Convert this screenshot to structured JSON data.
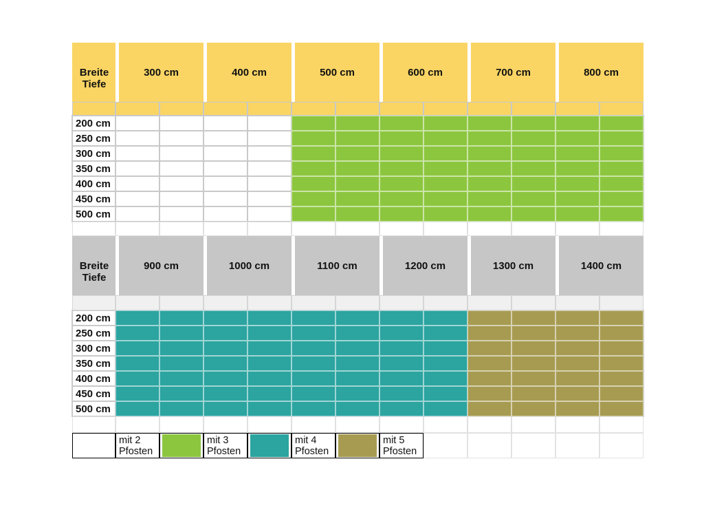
{
  "colors": {
    "yellow": "#FAD564",
    "gray": "#C6C6C6",
    "strip2": "#F0F0F0",
    "green": "#8CC63F",
    "teal": "#2CA4A0",
    "olive": "#A79B52",
    "grid": "#C9C9C9",
    "text": "#111111"
  },
  "tables": [
    {
      "corner_top": "Breite",
      "corner_bottom": "Tiefe",
      "columns": [
        "300 cm",
        "400 cm",
        "500 cm",
        "600 cm",
        "700 cm",
        "800 cm"
      ],
      "rows": [
        "200 cm",
        "250 cm",
        "300 cm",
        "350 cm",
        "400 cm",
        "450 cm",
        "500 cm"
      ],
      "zones": [
        "white",
        "white",
        "green",
        "green",
        "green",
        "green"
      ]
    },
    {
      "corner_top": "Breite",
      "corner_bottom": "Tiefe",
      "columns": [
        "900 cm",
        "1000 cm",
        "1100 cm",
        "1200 cm",
        "1300 cm",
        "1400 cm"
      ],
      "rows": [
        "200 cm",
        "250 cm",
        "300 cm",
        "350 cm",
        "400 cm",
        "450 cm",
        "500 cm"
      ],
      "zones": [
        "teal",
        "teal",
        "teal",
        "teal",
        "olive",
        "olive"
      ]
    }
  ],
  "legend": {
    "items": [
      {
        "swatch": "white",
        "line1": "mit 2",
        "line2": "Pfosten"
      },
      {
        "swatch": "green",
        "line1": "mit 3",
        "line2": "Pfosten"
      },
      {
        "swatch": "teal",
        "line1": "mit 4",
        "line2": "Pfosten"
      },
      {
        "swatch": "olive",
        "line1": "mit 5",
        "line2": "Pfosten"
      }
    ]
  },
  "chart_data": {
    "type": "heatmap",
    "xlabel": "Breite",
    "ylabel": "Tiefe",
    "x_widths_cm": [
      300,
      400,
      500,
      600,
      700,
      800,
      900,
      1000,
      1100,
      1200,
      1300,
      1400
    ],
    "y_depths_cm": [
      200,
      250,
      300,
      350,
      400,
      450,
      500
    ],
    "posts_by_width_cm": {
      "300": 2,
      "400": 2,
      "500": 3,
      "600": 3,
      "700": 3,
      "800": 3,
      "900": 4,
      "1000": 4,
      "1100": 4,
      "1200": 4,
      "1300": 5,
      "1400": 5
    },
    "legend": [
      {
        "label": "mit 2 Pfosten",
        "color": "#FFFFFF"
      },
      {
        "label": "mit 3 Pfosten",
        "color": "#8CC63F"
      },
      {
        "label": "mit 4 Pfosten",
        "color": "#2CA4A0"
      },
      {
        "label": "mit 5 Pfosten",
        "color": "#A79B52"
      }
    ]
  }
}
